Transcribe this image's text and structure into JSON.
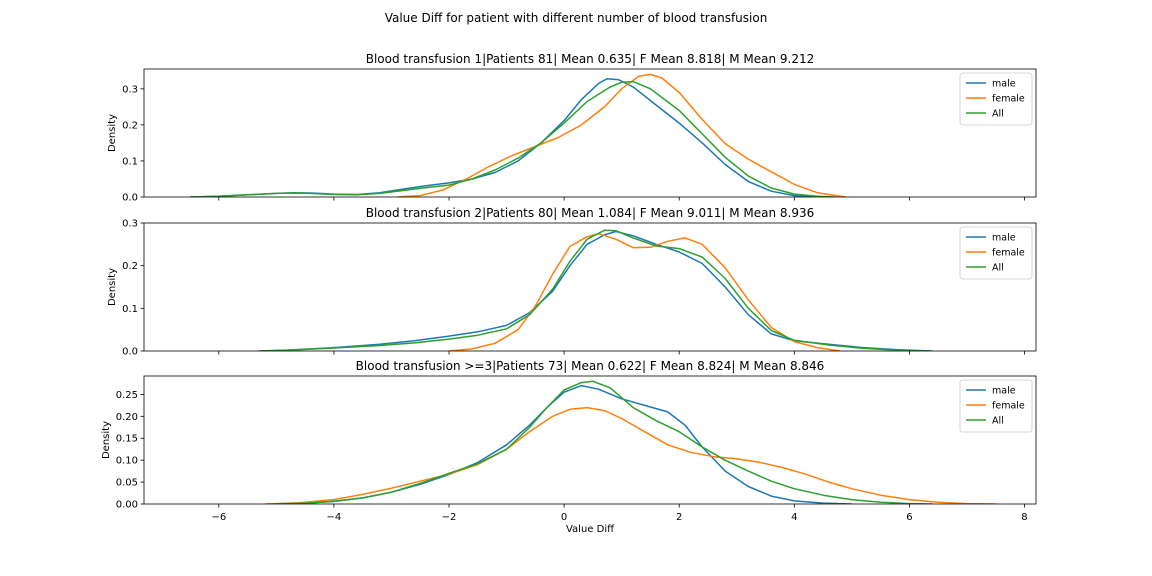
{
  "figure": {
    "suptitle": "Value Diff for patient with different number of blood transfusion"
  },
  "chart_data": [
    {
      "type": "line",
      "title": "Blood transfusion 1|Patients 81| Mean 0.635| F Mean 8.818| M Mean 9.212",
      "xlabel": "",
      "ylabel": "Density",
      "xlim": [
        -7.3,
        8.2
      ],
      "ylim": [
        0,
        0.355
      ],
      "xticks": [
        -6,
        -4,
        -2,
        0,
        2,
        4,
        6,
        8
      ],
      "yticks": [
        0.0,
        0.1,
        0.2,
        0.3
      ],
      "ytick_labels": [
        "0.0",
        "0.1",
        "0.2",
        "0.3"
      ],
      "show_xtick_labels": false,
      "grid": false,
      "legend": "top-right",
      "series": [
        {
          "name": "male",
          "color": "#1f77b4",
          "points": [
            [
              -6.5,
              0.0
            ],
            [
              -6.0,
              0.002
            ],
            [
              -5.5,
              0.006
            ],
            [
              -5.0,
              0.01
            ],
            [
              -4.7,
              0.012
            ],
            [
              -4.4,
              0.011
            ],
            [
              -4.0,
              0.008
            ],
            [
              -3.6,
              0.007
            ],
            [
              -3.2,
              0.012
            ],
            [
              -2.8,
              0.022
            ],
            [
              -2.4,
              0.031
            ],
            [
              -2.0,
              0.039
            ],
            [
              -1.6,
              0.05
            ],
            [
              -1.2,
              0.068
            ],
            [
              -0.8,
              0.1
            ],
            [
              -0.4,
              0.15
            ],
            [
              0.0,
              0.212
            ],
            [
              0.3,
              0.27
            ],
            [
              0.6,
              0.315
            ],
            [
              0.75,
              0.328
            ],
            [
              0.95,
              0.325
            ],
            [
              1.2,
              0.305
            ],
            [
              1.6,
              0.255
            ],
            [
              2.0,
              0.205
            ],
            [
              2.4,
              0.15
            ],
            [
              2.8,
              0.09
            ],
            [
              3.2,
              0.043
            ],
            [
              3.6,
              0.016
            ],
            [
              4.0,
              0.004
            ],
            [
              4.3,
              0.0
            ]
          ]
        },
        {
          "name": "female",
          "color": "#ff7f0e",
          "points": [
            [
              -2.9,
              0.0
            ],
            [
              -2.5,
              0.004
            ],
            [
              -2.1,
              0.02
            ],
            [
              -1.7,
              0.05
            ],
            [
              -1.3,
              0.085
            ],
            [
              -0.9,
              0.115
            ],
            [
              -0.5,
              0.14
            ],
            [
              -0.1,
              0.165
            ],
            [
              0.3,
              0.2
            ],
            [
              0.7,
              0.25
            ],
            [
              1.0,
              0.3
            ],
            [
              1.3,
              0.335
            ],
            [
              1.5,
              0.34
            ],
            [
              1.7,
              0.33
            ],
            [
              2.0,
              0.29
            ],
            [
              2.4,
              0.215
            ],
            [
              2.8,
              0.148
            ],
            [
              3.2,
              0.105
            ],
            [
              3.6,
              0.07
            ],
            [
              4.0,
              0.035
            ],
            [
              4.4,
              0.012
            ],
            [
              4.8,
              0.002
            ],
            [
              4.9,
              0.0
            ]
          ]
        },
        {
          "name": "All",
          "color": "#2ca02c",
          "points": [
            [
              -6.5,
              0.0
            ],
            [
              -6.0,
              0.002
            ],
            [
              -5.5,
              0.006
            ],
            [
              -5.0,
              0.01
            ],
            [
              -4.7,
              0.011
            ],
            [
              -4.4,
              0.01
            ],
            [
              -4.0,
              0.007
            ],
            [
              -3.6,
              0.006
            ],
            [
              -3.2,
              0.01
            ],
            [
              -2.8,
              0.018
            ],
            [
              -2.4,
              0.026
            ],
            [
              -2.0,
              0.033
            ],
            [
              -1.6,
              0.05
            ],
            [
              -1.2,
              0.075
            ],
            [
              -0.8,
              0.108
            ],
            [
              -0.4,
              0.15
            ],
            [
              0.0,
              0.205
            ],
            [
              0.4,
              0.265
            ],
            [
              0.8,
              0.305
            ],
            [
              1.0,
              0.318
            ],
            [
              1.2,
              0.32
            ],
            [
              1.5,
              0.3
            ],
            [
              2.0,
              0.24
            ],
            [
              2.4,
              0.175
            ],
            [
              2.8,
              0.11
            ],
            [
              3.2,
              0.058
            ],
            [
              3.6,
              0.025
            ],
            [
              4.0,
              0.008
            ],
            [
              4.4,
              0.002
            ],
            [
              4.7,
              0.0
            ]
          ]
        }
      ]
    },
    {
      "type": "line",
      "title": "Blood transfusion 2|Patients 80| Mean 1.084| F Mean 9.011| M Mean 8.936",
      "xlabel": "",
      "ylabel": "Density",
      "xlim": [
        -7.3,
        8.2
      ],
      "ylim": [
        0,
        0.3
      ],
      "xticks": [
        -6,
        -4,
        -2,
        0,
        2,
        4,
        6,
        8
      ],
      "yticks": [
        0.0,
        0.1,
        0.2,
        0.3
      ],
      "ytick_labels": [
        "0.0",
        "0.1",
        "0.2",
        "0.3"
      ],
      "show_xtick_labels": false,
      "grid": false,
      "legend": "top-right",
      "series": [
        {
          "name": "male",
          "color": "#1f77b4",
          "points": [
            [
              -5.3,
              0.0
            ],
            [
              -4.8,
              0.002
            ],
            [
              -4.0,
              0.008
            ],
            [
              -3.2,
              0.016
            ],
            [
              -2.6,
              0.024
            ],
            [
              -2.0,
              0.035
            ],
            [
              -1.5,
              0.045
            ],
            [
              -1.0,
              0.06
            ],
            [
              -0.6,
              0.09
            ],
            [
              -0.2,
              0.14
            ],
            [
              0.1,
              0.2
            ],
            [
              0.4,
              0.25
            ],
            [
              0.7,
              0.272
            ],
            [
              0.9,
              0.28
            ],
            [
              1.2,
              0.27
            ],
            [
              1.6,
              0.25
            ],
            [
              2.0,
              0.232
            ],
            [
              2.4,
              0.205
            ],
            [
              2.8,
              0.15
            ],
            [
              3.2,
              0.085
            ],
            [
              3.6,
              0.04
            ],
            [
              4.0,
              0.024
            ],
            [
              4.6,
              0.016
            ],
            [
              5.2,
              0.008
            ],
            [
              5.8,
              0.003
            ],
            [
              6.4,
              0.0
            ]
          ]
        },
        {
          "name": "female",
          "color": "#ff7f0e",
          "points": [
            [
              -2.0,
              0.0
            ],
            [
              -1.6,
              0.005
            ],
            [
              -1.2,
              0.018
            ],
            [
              -0.8,
              0.05
            ],
            [
              -0.5,
              0.105
            ],
            [
              -0.2,
              0.18
            ],
            [
              0.1,
              0.245
            ],
            [
              0.4,
              0.268
            ],
            [
              0.6,
              0.275
            ],
            [
              0.9,
              0.262
            ],
            [
              1.2,
              0.242
            ],
            [
              1.5,
              0.243
            ],
            [
              1.8,
              0.257
            ],
            [
              2.1,
              0.265
            ],
            [
              2.4,
              0.25
            ],
            [
              2.8,
              0.195
            ],
            [
              3.2,
              0.12
            ],
            [
              3.6,
              0.055
            ],
            [
              4.0,
              0.022
            ],
            [
              4.4,
              0.008
            ],
            [
              4.8,
              0.0
            ]
          ]
        },
        {
          "name": "All",
          "color": "#2ca02c",
          "points": [
            [
              -5.3,
              0.0
            ],
            [
              -4.8,
              0.002
            ],
            [
              -4.0,
              0.007
            ],
            [
              -3.2,
              0.013
            ],
            [
              -2.6,
              0.019
            ],
            [
              -2.0,
              0.028
            ],
            [
              -1.5,
              0.037
            ],
            [
              -1.0,
              0.052
            ],
            [
              -0.6,
              0.085
            ],
            [
              -0.2,
              0.145
            ],
            [
              0.1,
              0.21
            ],
            [
              0.4,
              0.262
            ],
            [
              0.7,
              0.283
            ],
            [
              0.9,
              0.282
            ],
            [
              1.2,
              0.265
            ],
            [
              1.6,
              0.246
            ],
            [
              2.0,
              0.24
            ],
            [
              2.4,
              0.22
            ],
            [
              2.8,
              0.17
            ],
            [
              3.2,
              0.1
            ],
            [
              3.6,
              0.048
            ],
            [
              4.0,
              0.025
            ],
            [
              4.6,
              0.014
            ],
            [
              5.2,
              0.006
            ],
            [
              5.8,
              0.002
            ],
            [
              6.3,
              0.0
            ]
          ]
        }
      ]
    },
    {
      "type": "line",
      "title": "Blood transfusion >=3|Patients 73| Mean 0.622| F Mean 8.824| M Mean 8.846",
      "xlabel": "Value Diff",
      "ylabel": "Density",
      "xlim": [
        -7.3,
        8.2
      ],
      "ylim": [
        0,
        0.292
      ],
      "xticks": [
        -6,
        -4,
        -2,
        0,
        2,
        4,
        6,
        8
      ],
      "xtick_labels": [
        "−6",
        "−4",
        "−2",
        "0",
        "2",
        "4",
        "6",
        "8"
      ],
      "yticks": [
        0.0,
        0.05,
        0.1,
        0.15,
        0.2,
        0.25
      ],
      "ytick_labels": [
        "0.00",
        "0.05",
        "0.10",
        "0.15",
        "0.20",
        "0.25"
      ],
      "show_xtick_labels": true,
      "grid": false,
      "legend": "top-right",
      "series": [
        {
          "name": "male",
          "color": "#1f77b4",
          "points": [
            [
              -5.0,
              0.0
            ],
            [
              -4.5,
              0.002
            ],
            [
              -4.0,
              0.006
            ],
            [
              -3.5,
              0.014
            ],
            [
              -3.0,
              0.027
            ],
            [
              -2.5,
              0.045
            ],
            [
              -2.0,
              0.067
            ],
            [
              -1.5,
              0.095
            ],
            [
              -1.0,
              0.135
            ],
            [
              -0.6,
              0.18
            ],
            [
              -0.3,
              0.22
            ],
            [
              0.0,
              0.255
            ],
            [
              0.3,
              0.27
            ],
            [
              0.6,
              0.262
            ],
            [
              1.0,
              0.24
            ],
            [
              1.4,
              0.225
            ],
            [
              1.8,
              0.21
            ],
            [
              2.1,
              0.18
            ],
            [
              2.4,
              0.13
            ],
            [
              2.8,
              0.075
            ],
            [
              3.2,
              0.04
            ],
            [
              3.6,
              0.018
            ],
            [
              4.0,
              0.007
            ],
            [
              4.5,
              0.002
            ],
            [
              5.0,
              0.0
            ]
          ]
        },
        {
          "name": "female",
          "color": "#ff7f0e",
          "points": [
            [
              -5.2,
              0.0
            ],
            [
              -4.6,
              0.003
            ],
            [
              -4.0,
              0.01
            ],
            [
              -3.5,
              0.022
            ],
            [
              -3.0,
              0.036
            ],
            [
              -2.5,
              0.052
            ],
            [
              -2.0,
              0.068
            ],
            [
              -1.5,
              0.09
            ],
            [
              -1.0,
              0.125
            ],
            [
              -0.6,
              0.165
            ],
            [
              -0.2,
              0.2
            ],
            [
              0.1,
              0.216
            ],
            [
              0.4,
              0.22
            ],
            [
              0.7,
              0.213
            ],
            [
              1.0,
              0.195
            ],
            [
              1.4,
              0.165
            ],
            [
              1.8,
              0.135
            ],
            [
              2.2,
              0.118
            ],
            [
              2.6,
              0.108
            ],
            [
              3.0,
              0.103
            ],
            [
              3.4,
              0.095
            ],
            [
              3.8,
              0.083
            ],
            [
              4.2,
              0.068
            ],
            [
              4.6,
              0.05
            ],
            [
              5.0,
              0.035
            ],
            [
              5.5,
              0.02
            ],
            [
              6.0,
              0.01
            ],
            [
              6.5,
              0.004
            ],
            [
              7.0,
              0.001
            ],
            [
              7.5,
              0.0
            ]
          ]
        },
        {
          "name": "All",
          "color": "#2ca02c",
          "points": [
            [
              -5.0,
              0.0
            ],
            [
              -4.5,
              0.002
            ],
            [
              -4.0,
              0.006
            ],
            [
              -3.5,
              0.014
            ],
            [
              -3.0,
              0.027
            ],
            [
              -2.5,
              0.047
            ],
            [
              -2.0,
              0.07
            ],
            [
              -1.5,
              0.092
            ],
            [
              -1.0,
              0.125
            ],
            [
              -0.6,
              0.175
            ],
            [
              -0.3,
              0.22
            ],
            [
              0.0,
              0.26
            ],
            [
              0.3,
              0.277
            ],
            [
              0.5,
              0.28
            ],
            [
              0.8,
              0.265
            ],
            [
              1.2,
              0.22
            ],
            [
              1.6,
              0.19
            ],
            [
              2.0,
              0.165
            ],
            [
              2.4,
              0.13
            ],
            [
              2.8,
              0.1
            ],
            [
              3.2,
              0.075
            ],
            [
              3.6,
              0.052
            ],
            [
              4.0,
              0.035
            ],
            [
              4.5,
              0.02
            ],
            [
              5.0,
              0.01
            ],
            [
              5.5,
              0.004
            ],
            [
              6.0,
              0.001
            ],
            [
              6.4,
              0.0
            ]
          ]
        }
      ]
    }
  ]
}
